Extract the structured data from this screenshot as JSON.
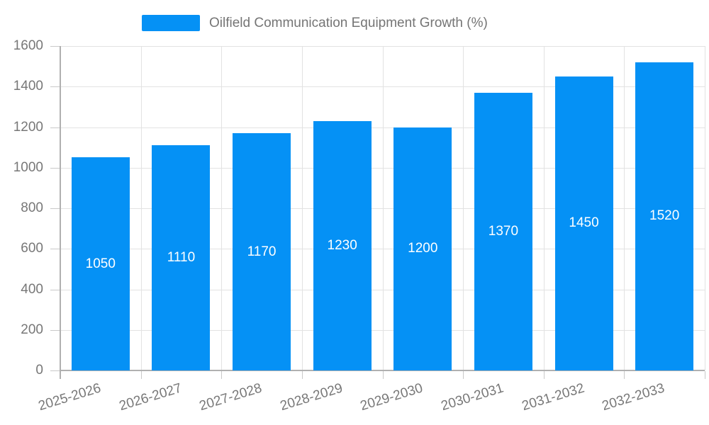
{
  "chart_data": {
    "type": "bar",
    "title": "Oilfield Communication Equipment Growth (%)",
    "legend_entries": [
      "Oilfield Communication Equipment Growth (%)"
    ],
    "legend_position": "top-center",
    "categories": [
      "2025-2026",
      "2026-2027",
      "2027-2028",
      "2028-2029",
      "2029-2030",
      "2030-2031",
      "2031-2032",
      "2032-2033"
    ],
    "values": [
      1050,
      1110,
      1170,
      1230,
      1200,
      1370,
      1450,
      1520
    ],
    "xlabel": "",
    "ylabel": "",
    "ylim": [
      0,
      1600
    ],
    "ytick_step": 200,
    "ytick_labels": [
      "0",
      "200",
      "400",
      "600",
      "800",
      "1000",
      "1200",
      "1400",
      "1600"
    ],
    "grid": true,
    "bar_color": "#0591F5",
    "bar_label_color": "#ffffff",
    "axis_text_color": "#777777",
    "gridline_color": "#e2e2e2",
    "axis_line_color": "#b0b0b0"
  }
}
